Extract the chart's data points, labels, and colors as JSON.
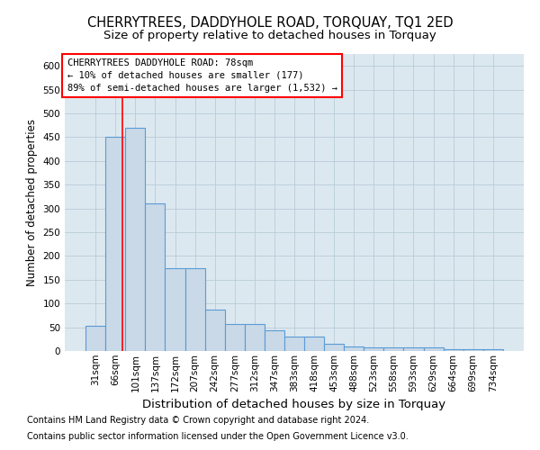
{
  "title": "CHERRYTREES, DADDYHOLE ROAD, TORQUAY, TQ1 2ED",
  "subtitle": "Size of property relative to detached houses in Torquay",
  "xlabel": "Distribution of detached houses by size in Torquay",
  "ylabel": "Number of detached properties",
  "footnote1": "Contains HM Land Registry data © Crown copyright and database right 2024.",
  "footnote2": "Contains public sector information licensed under the Open Government Licence v3.0.",
  "bin_labels": [
    "31sqm",
    "66sqm",
    "101sqm",
    "137sqm",
    "172sqm",
    "207sqm",
    "242sqm",
    "277sqm",
    "312sqm",
    "347sqm",
    "383sqm",
    "418sqm",
    "453sqm",
    "488sqm",
    "523sqm",
    "558sqm",
    "593sqm",
    "629sqm",
    "664sqm",
    "699sqm",
    "734sqm"
  ],
  "bar_values": [
    53,
    450,
    470,
    310,
    175,
    175,
    88,
    57,
    57,
    43,
    30,
    30,
    15,
    9,
    8,
    8,
    8,
    8,
    3,
    3,
    3
  ],
  "bar_color": "#c9d9e8",
  "bar_edge_color": "#5b9bd5",
  "bar_edge_width": 0.8,
  "grid_color": "#b8ccd8",
  "background_color": "#dce8f0",
  "annotation_text": "CHERRYTREES DADDYHOLE ROAD: 78sqm\n← 10% of detached houses are smaller (177)\n89% of semi-detached houses are larger (1,532) →",
  "annotation_box_color": "white",
  "annotation_box_edge": "red",
  "red_line_x": 1.33,
  "ylim": [
    0,
    625
  ],
  "yticks": [
    0,
    50,
    100,
    150,
    200,
    250,
    300,
    350,
    400,
    450,
    500,
    550,
    600
  ],
  "title_fontsize": 10.5,
  "subtitle_fontsize": 9.5,
  "xlabel_fontsize": 9.5,
  "ylabel_fontsize": 8.5,
  "tick_fontsize": 7.5,
  "annotation_fontsize": 7.5,
  "footnote_fontsize": 7
}
